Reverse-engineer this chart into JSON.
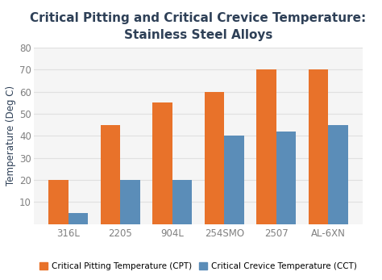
{
  "title_line1": "Critical Pitting and Critical Crevice Temperature:",
  "title_line2": "Stainless Steel Alloys",
  "categories": [
    "316L",
    "2205",
    "904L",
    "254SMO",
    "2507",
    "AL-6XN"
  ],
  "cpt_values": [
    20,
    45,
    55,
    60,
    70,
    70
  ],
  "cct_values": [
    5,
    20,
    20,
    40,
    42,
    45
  ],
  "cpt_color": "#E8722A",
  "cct_color": "#5B8DB8",
  "ylabel": "Temperature (Deg C)",
  "ylim": [
    0,
    80
  ],
  "yticks": [
    0,
    10,
    20,
    30,
    40,
    50,
    60,
    70,
    80
  ],
  "legend_cpt": "Critical Pitting Temperature (CPT)",
  "legend_cct": "Critical Crevice Temperature (CCT)",
  "title_color": "#2E4057",
  "axis_label_color": "#2E4057",
  "tick_color": "#808080",
  "bar_width": 0.38,
  "background_color": "#FFFFFF",
  "plot_bg_color": "#F5F5F5",
  "grid_color": "#E0E0E0",
  "title_fontsize": 11,
  "axis_fontsize": 8.5,
  "tick_fontsize": 8.5,
  "legend_fontsize": 7.5
}
